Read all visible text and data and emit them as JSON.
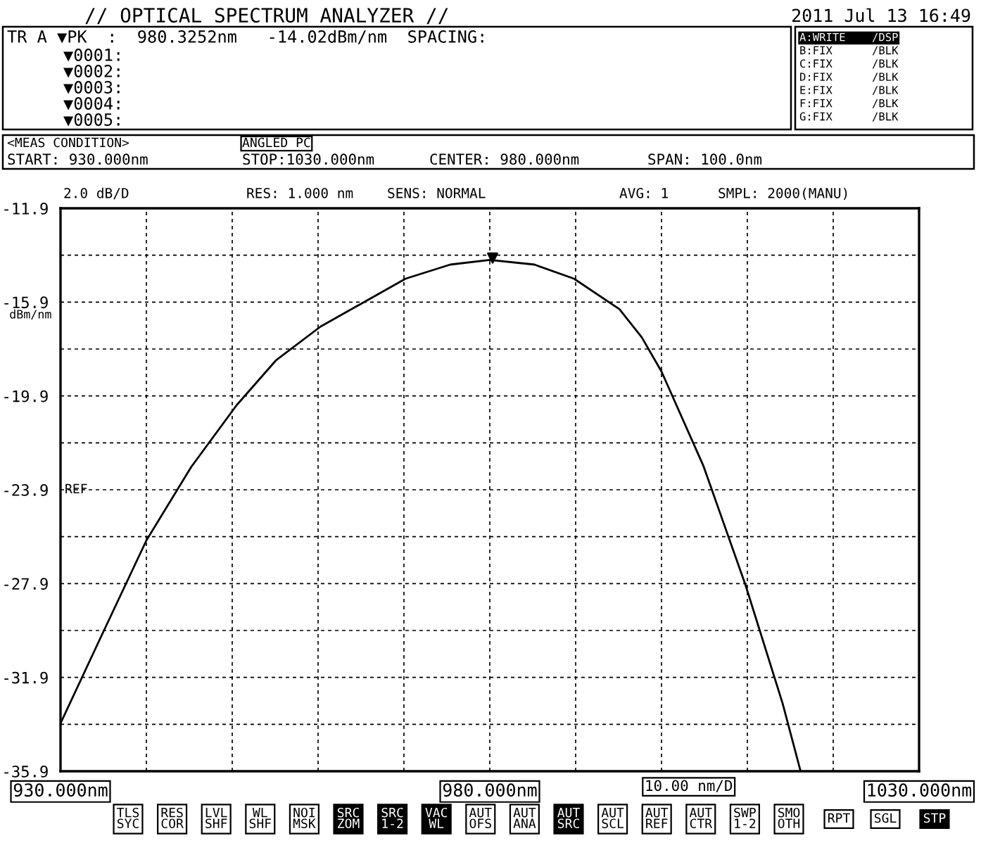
{
  "chart_data": {
    "type": "line",
    "title": "// OPTICAL SPECTRUM ANALYZER //",
    "ylabel": "dBm/nm",
    "x": [
      930,
      934.75,
      940,
      945.2,
      950.5,
      955.1,
      960.3,
      970.2,
      975.4,
      980,
      985.2,
      989.8,
      995.1,
      997.7,
      1000,
      1004.9,
      1009.8,
      1014.1,
      1016.2
    ],
    "series": [
      {
        "color": "#000000",
        "values": [
          -33.86,
          -30.14,
          -26.06,
          -22.94,
          -20.3,
          -18.38,
          -16.94,
          -14.9,
          -14.3,
          -14.1,
          -14.3,
          -14.9,
          -16.2,
          -17.4,
          -18.86,
          -22.9,
          -27.98,
          -33.0,
          -35.9
        ]
      },
      {
        "type": "scatter",
        "marker": "triangle",
        "color": "#000000",
        "x": [
          980.3252
        ],
        "values": [
          -14.02
        ]
      }
    ],
    "xlim": [
      930,
      1030
    ],
    "ylim": [
      -35.9,
      -11.9
    ],
    "xticks": [
      {
        "value": 930,
        "label": "930.000nm"
      },
      {
        "value": 940,
        "label": null
      },
      {
        "value": 950,
        "label": null
      },
      {
        "value": 960,
        "label": null
      },
      {
        "value": 970,
        "label": null
      },
      {
        "value": 980,
        "label": "980.000nm"
      },
      {
        "value": 990,
        "label": null
      },
      {
        "value": 1000,
        "label": null
      },
      {
        "value": 1010,
        "label": null
      },
      {
        "value": 1020,
        "label": null
      },
      {
        "value": 1030,
        "label": "1030.000nm"
      }
    ],
    "yticks": [
      -35.9,
      {
        "value": -33.9,
        "label": null
      },
      -31.9,
      {
        "value": -29.9,
        "label": null
      },
      -27.9,
      {
        "value": -25.9,
        "label": null
      },
      -23.9,
      {
        "value": -21.9,
        "label": null
      },
      -19.9,
      {
        "value": -17.9,
        "label": null
      },
      -15.9,
      {
        "value": -13.9,
        "label": null
      },
      -11.9
    ],
    "grid": true,
    "line_style": "solid",
    "legend": false,
    "annotations": [
      "2011 Jul 13 16:49",
      "TR A ▼PK  :  980.3252nm   -14.02dBm/nm  SPACING:",
      "▼0001:",
      "▼0002:",
      "▼0003:",
      "▼0004:",
      "▼0005:",
      "A:WRITE    /DSP",
      "B:FIX      /BLK",
      "C:FIX      /BLK",
      "D:FIX      /BLK",
      "E:FIX      /BLK",
      "F:FIX      /BLK",
      "G:FIX      /BLK",
      "<MEAS CONDITION>",
      "ANGLED PC",
      "START: 930.000nm",
      "STOP:1030.000nm",
      "CENTER: 980.000nm",
      "SPAN: 100.0nm",
      "2.0 dB/D",
      "RES: 1.000 nm",
      "SENS: NORMAL",
      "AVG: 1",
      "SMPL: 2000(MANU)",
      "TLS\nSYC",
      "RES\nCOR",
      "LVL\nSHF",
      "WL\nSHF",
      "NOI\nMSK",
      "SRC\nZOM",
      "SRC\n1-2",
      "VAC\nWL",
      "AUT\nOFS",
      "AUT\nANA",
      "AUT\nSRC",
      "AUT\nSCL",
      "AUT\nREF",
      "AUT\nCTR",
      "SWP\n1-2",
      "SMO\nOTH",
      "RPT",
      "SGL",
      "STP",
      "REF"
    ],
    "xlabel": "10.00 nm/D"
  }
}
